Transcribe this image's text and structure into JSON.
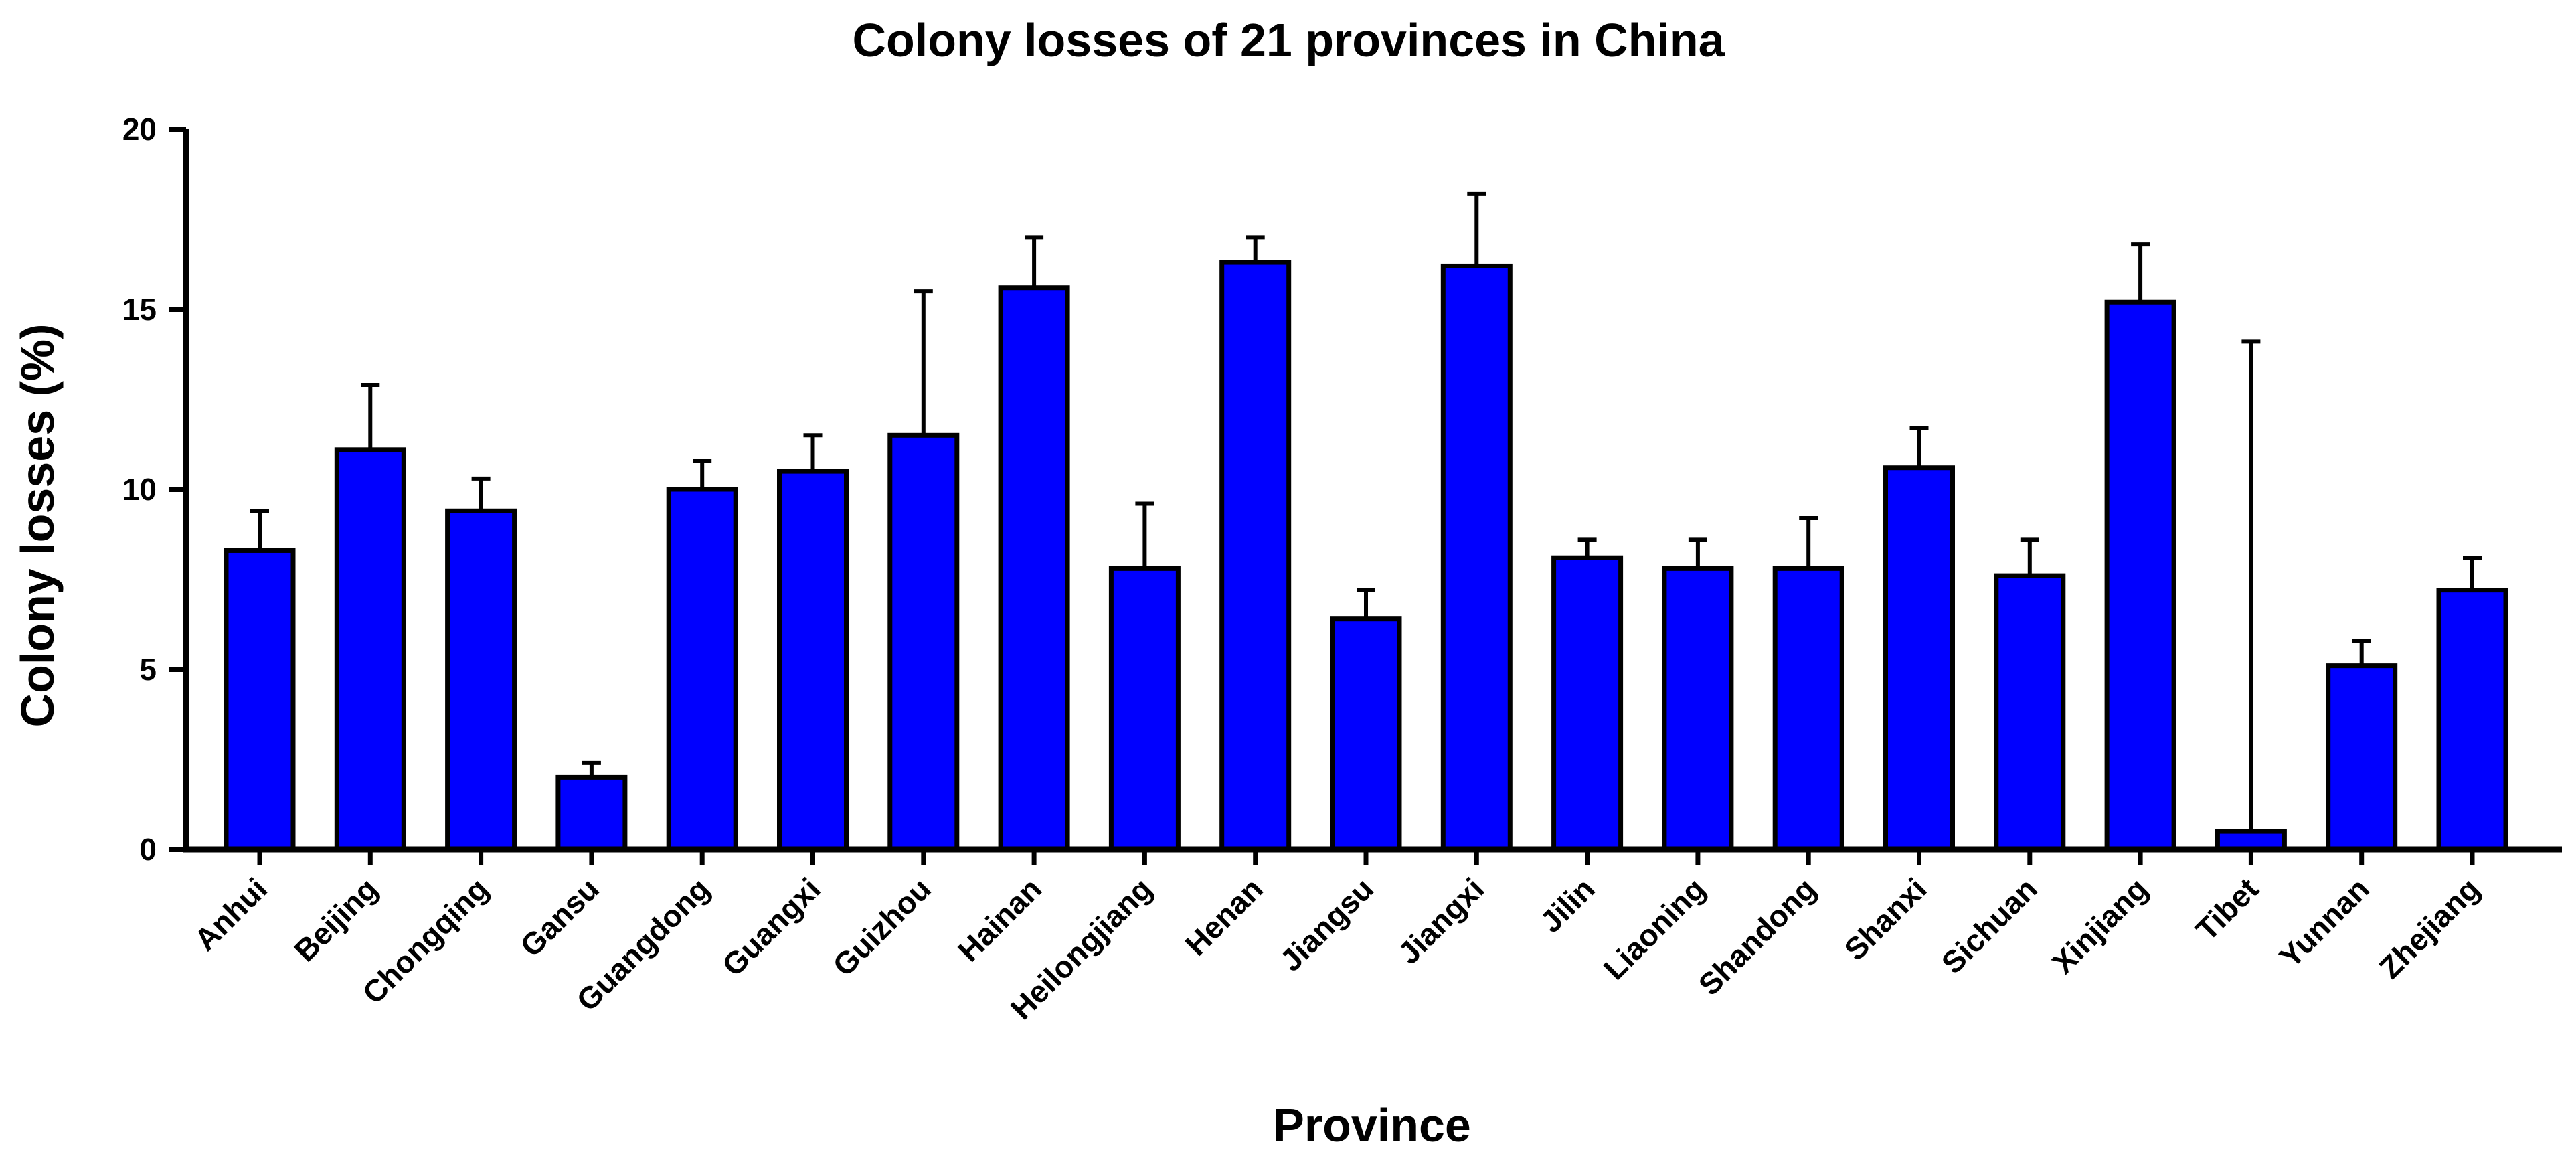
{
  "chart_data": {
    "type": "bar",
    "title": "Colony losses of 21 provinces in China",
    "xlabel": "Province",
    "ylabel": "Colony losses (%)",
    "ylim": [
      0,
      20
    ],
    "yticks": [
      0,
      5,
      10,
      15,
      20
    ],
    "grid": false,
    "bar_color": "#0000FF",
    "categories": [
      "Anhui",
      "Beijing",
      "Chongqing",
      "Gansu",
      "Guangdong",
      "Guangxi",
      "Guizhou",
      "Hainan",
      "Heilongjiang",
      "Henan",
      "Jiangsu",
      "Jiangxi",
      "Jilin",
      "Liaoning",
      "Shandong",
      "Shanxi",
      "Sichuan",
      "Xinjiang",
      "Tibet",
      "Yunnan",
      "Zhejiang"
    ],
    "values": [
      8.3,
      11.1,
      9.4,
      2.0,
      10.0,
      10.5,
      11.5,
      15.6,
      7.8,
      16.3,
      6.4,
      16.2,
      8.1,
      7.8,
      7.8,
      10.6,
      7.6,
      15.2,
      0.5,
      5.1,
      7.2
    ],
    "error_upper": [
      9.4,
      12.9,
      10.3,
      2.4,
      10.8,
      11.5,
      15.5,
      17.0,
      9.6,
      17.0,
      7.2,
      18.2,
      8.6,
      8.6,
      9.2,
      11.7,
      8.6,
      16.8,
      14.1,
      5.8,
      8.1
    ]
  }
}
